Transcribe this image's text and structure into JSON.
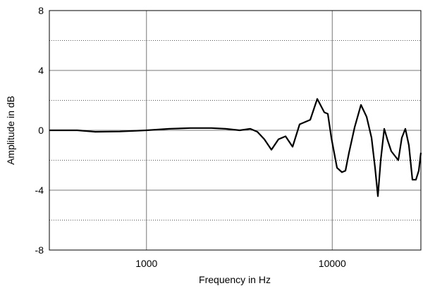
{
  "chart_data": {
    "type": "line",
    "x_label": "Frequency in Hz",
    "y_label": "Amplitude in dB",
    "x_log": true,
    "xlim": [
      300,
      30000
    ],
    "xticks": [
      1000,
      10000
    ],
    "ylim": [
      -8,
      8
    ],
    "yticks": [
      -8,
      -4,
      0,
      4,
      8
    ],
    "y_minor_grid": [
      -6,
      -2,
      2,
      6
    ],
    "grid": true,
    "series": [
      {
        "color": "#000000",
        "x": [
          300,
          424,
          530,
          719,
          1000,
          1326,
          1722,
          2238,
          2670,
          3175,
          3622,
          3952,
          4311,
          4705,
          5135,
          5605,
          6117,
          6673,
          7612,
          8304,
          9063,
          9467,
          9889,
          10605,
          11274,
          11778,
          12306,
          13195,
          14275,
          15311,
          16274,
          17000,
          17607,
          18233,
          19050,
          19900,
          20787,
          22676,
          23685,
          24745,
          25851,
          27010,
          28214,
          29219,
          30000
        ],
        "values": [
          0,
          0,
          -0.1,
          -0.08,
          0,
          0.1,
          0.15,
          0.15,
          0.1,
          0,
          0.1,
          -0.1,
          -0.6,
          -1.3,
          -0.6,
          -0.4,
          -1.1,
          0.4,
          0.7,
          2.1,
          1.2,
          1.1,
          -0.5,
          -2.5,
          -2.8,
          -2.7,
          -1.5,
          0.2,
          1.7,
          0.9,
          -0.5,
          -2.5,
          -4.4,
          -2,
          0.1,
          -0.7,
          -1.4,
          -2,
          -0.5,
          0.1,
          -1,
          -3.3,
          -3.3,
          -2.7,
          -1.5
        ]
      }
    ]
  }
}
